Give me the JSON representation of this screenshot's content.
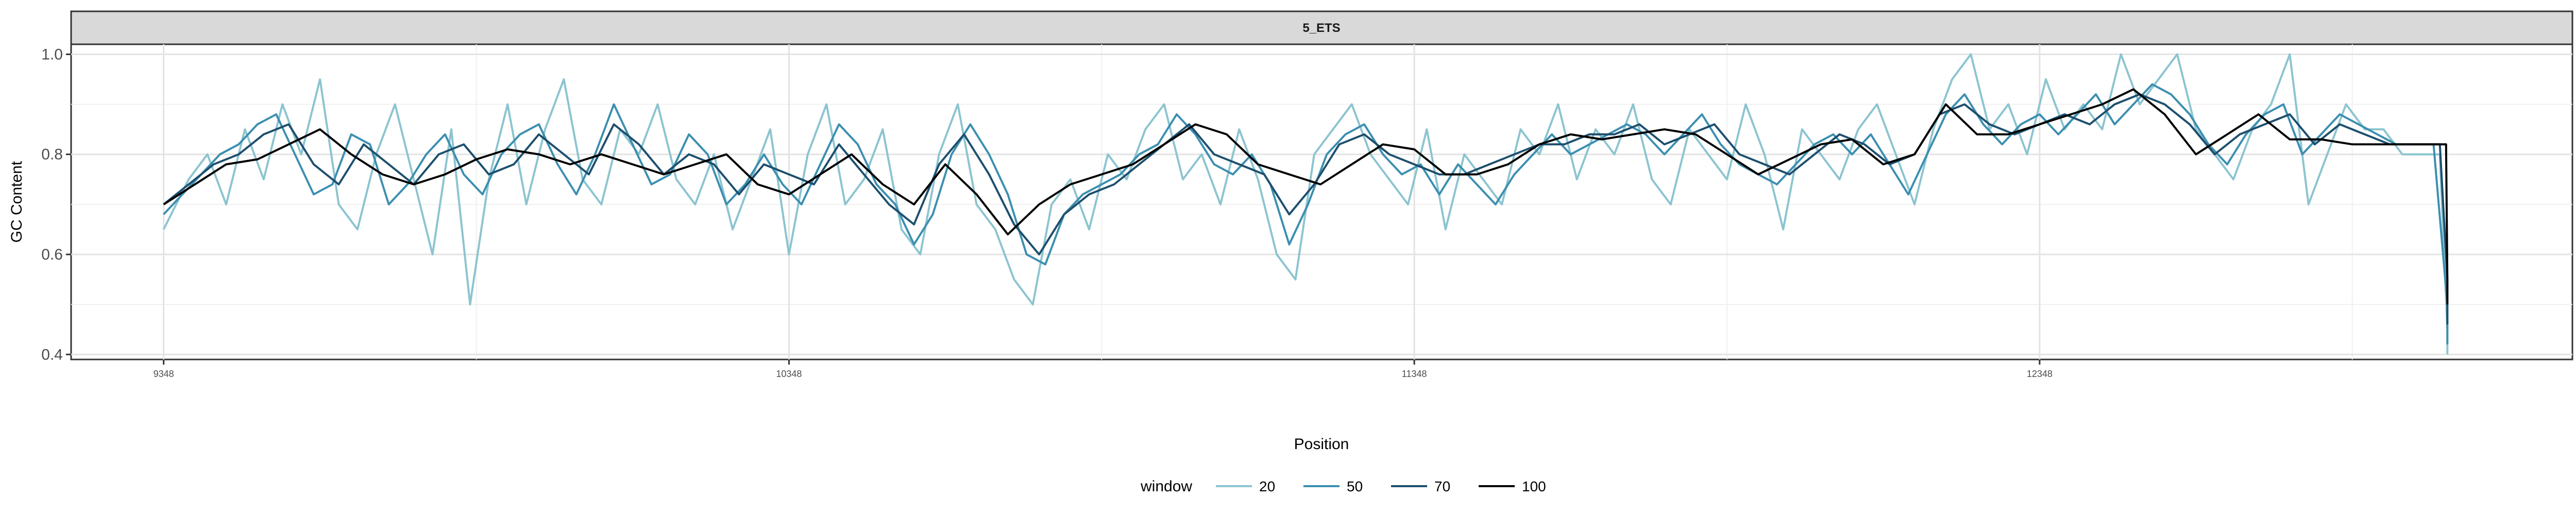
{
  "chart_data": {
    "type": "line",
    "facet_label": "5_ETS",
    "xlabel": "Position",
    "ylabel": "GC Content",
    "xlim": [
      9200,
      13200
    ],
    "ylim": [
      0.39,
      1.02
    ],
    "x_ticks": [
      9348,
      10348,
      11348,
      12348
    ],
    "x_tick_labels": [
      "9348",
      "10348",
      "11348",
      "12348"
    ],
    "y_ticks": [
      0.4,
      0.6,
      0.8,
      1.0
    ],
    "y_tick_labels": [
      "0.4",
      "0.6",
      "0.8",
      "1.0"
    ],
    "grid": true,
    "legend_title": "window",
    "legend_position": "bottom",
    "series": [
      {
        "name": "20",
        "color": "#8cc4d0",
        "width": 4,
        "x": [
          9348,
          9388,
          9418,
          9448,
          9478,
          9508,
          9538,
          9568,
          9598,
          9628,
          9658,
          9688,
          9718,
          9748,
          9778,
          9808,
          9838,
          9868,
          9898,
          9928,
          9958,
          9988,
          10018,
          10048,
          10078,
          10108,
          10138,
          10168,
          10198,
          10228,
          10258,
          10288,
          10318,
          10348,
          10378,
          10408,
          10438,
          10468,
          10498,
          10528,
          10558,
          10588,
          10618,
          10648,
          10678,
          10708,
          10738,
          10768,
          10798,
          10828,
          10858,
          10888,
          10918,
          10948,
          10978,
          11008,
          11038,
          11068,
          11098,
          11128,
          11158,
          11188,
          11218,
          11248,
          11278,
          11308,
          11338,
          11368,
          11398,
          11428,
          11458,
          11488,
          11518,
          11548,
          11578,
          11608,
          11638,
          11668,
          11698,
          11728,
          11758,
          11788,
          11818,
          11848,
          11878,
          11908,
          11938,
          11968,
          11998,
          12028,
          12058,
          12088,
          12118,
          12148,
          12178,
          12208,
          12238,
          12268,
          12298,
          12328,
          12358,
          12388,
          12418,
          12448,
          12478,
          12508,
          12538,
          12568,
          12598,
          12628,
          12658,
          12688,
          12718,
          12748,
          12778,
          12808,
          12838,
          12868,
          12898,
          12928,
          12958,
          12988,
          13000,
          13000
        ],
        "y": [
          0.65,
          0.75,
          0.8,
          0.7,
          0.85,
          0.75,
          0.9,
          0.8,
          0.95,
          0.7,
          0.65,
          0.8,
          0.9,
          0.75,
          0.6,
          0.85,
          0.5,
          0.75,
          0.9,
          0.7,
          0.85,
          0.95,
          0.75,
          0.7,
          0.85,
          0.8,
          0.9,
          0.75,
          0.7,
          0.8,
          0.65,
          0.75,
          0.85,
          0.6,
          0.8,
          0.9,
          0.7,
          0.75,
          0.85,
          0.65,
          0.6,
          0.8,
          0.9,
          0.7,
          0.65,
          0.55,
          0.5,
          0.7,
          0.75,
          0.65,
          0.8,
          0.75,
          0.85,
          0.9,
          0.75,
          0.8,
          0.7,
          0.85,
          0.75,
          0.6,
          0.55,
          0.8,
          0.85,
          0.9,
          0.8,
          0.75,
          0.7,
          0.85,
          0.65,
          0.8,
          0.75,
          0.7,
          0.85,
          0.8,
          0.9,
          0.75,
          0.85,
          0.8,
          0.9,
          0.75,
          0.7,
          0.85,
          0.8,
          0.75,
          0.9,
          0.8,
          0.65,
          0.85,
          0.8,
          0.75,
          0.85,
          0.9,
          0.8,
          0.7,
          0.85,
          0.95,
          1.0,
          0.85,
          0.9,
          0.8,
          0.95,
          0.85,
          0.9,
          0.85,
          1.0,
          0.9,
          0.95,
          1.0,
          0.85,
          0.8,
          0.75,
          0.85,
          0.9,
          1.0,
          0.7,
          0.8,
          0.9,
          0.85,
          0.85,
          0.8,
          0.8,
          0.8,
          0.45,
          0.4
        ]
      },
      {
        "name": "50",
        "color": "#3c8fb0",
        "width": 4,
        "x": [
          9348,
          9378,
          9408,
          9438,
          9468,
          9498,
          9528,
          9558,
          9588,
          9618,
          9648,
          9678,
          9708,
          9738,
          9768,
          9798,
          9828,
          9858,
          9888,
          9918,
          9948,
          9978,
          10008,
          10038,
          10068,
          10098,
          10128,
          10158,
          10188,
          10218,
          10248,
          10278,
          10308,
          10338,
          10368,
          10398,
          10428,
          10458,
          10488,
          10518,
          10548,
          10578,
          10608,
          10638,
          10668,
          10698,
          10728,
          10758,
          10788,
          10818,
          10848,
          10878,
          10908,
          10938,
          10968,
          10998,
          11028,
          11058,
          11088,
          11118,
          11148,
          11178,
          11208,
          11238,
          11268,
          11298,
          11328,
          11358,
          11388,
          11418,
          11448,
          11478,
          11508,
          11538,
          11568,
          11598,
          11628,
          11658,
          11688,
          11718,
          11748,
          11778,
          11808,
          11838,
          11868,
          11898,
          11928,
          11958,
          11988,
          12018,
          12048,
          12078,
          12108,
          12138,
          12168,
          12198,
          12228,
          12258,
          12288,
          12318,
          12348,
          12378,
          12408,
          12438,
          12468,
          12498,
          12528,
          12558,
          12588,
          12618,
          12648,
          12678,
          12708,
          12738,
          12768,
          12798,
          12828,
          12858,
          12888,
          12918,
          12948,
          12978,
          13000,
          13000
        ],
        "y": [
          0.68,
          0.72,
          0.76,
          0.8,
          0.82,
          0.86,
          0.88,
          0.8,
          0.72,
          0.74,
          0.84,
          0.82,
          0.7,
          0.74,
          0.8,
          0.84,
          0.76,
          0.72,
          0.8,
          0.84,
          0.86,
          0.78,
          0.72,
          0.8,
          0.9,
          0.82,
          0.74,
          0.76,
          0.84,
          0.8,
          0.7,
          0.74,
          0.8,
          0.74,
          0.7,
          0.78,
          0.86,
          0.82,
          0.74,
          0.7,
          0.62,
          0.68,
          0.8,
          0.86,
          0.8,
          0.72,
          0.6,
          0.58,
          0.68,
          0.72,
          0.74,
          0.76,
          0.8,
          0.82,
          0.88,
          0.84,
          0.78,
          0.76,
          0.8,
          0.74,
          0.62,
          0.7,
          0.8,
          0.84,
          0.86,
          0.8,
          0.76,
          0.78,
          0.72,
          0.78,
          0.74,
          0.7,
          0.76,
          0.8,
          0.84,
          0.8,
          0.82,
          0.84,
          0.86,
          0.84,
          0.8,
          0.84,
          0.88,
          0.82,
          0.78,
          0.76,
          0.74,
          0.78,
          0.82,
          0.84,
          0.8,
          0.84,
          0.78,
          0.72,
          0.8,
          0.88,
          0.92,
          0.86,
          0.82,
          0.86,
          0.88,
          0.84,
          0.88,
          0.92,
          0.86,
          0.9,
          0.94,
          0.92,
          0.88,
          0.82,
          0.78,
          0.84,
          0.88,
          0.9,
          0.8,
          0.84,
          0.88,
          0.86,
          0.84,
          0.82,
          0.82,
          0.82,
          0.5,
          0.42
        ]
      },
      {
        "name": "70",
        "color": "#1d4f6e",
        "width": 4,
        "x": [
          9348,
          9388,
          9428,
          9468,
          9508,
          9548,
          9588,
          9628,
          9668,
          9708,
          9748,
          9788,
          9828,
          9868,
          9908,
          9948,
          9988,
          10028,
          10068,
          10108,
          10148,
          10188,
          10228,
          10268,
          10308,
          10348,
          10388,
          10428,
          10468,
          10508,
          10548,
          10588,
          10628,
          10668,
          10708,
          10748,
          10788,
          10828,
          10868,
          10908,
          10948,
          10988,
          11028,
          11068,
          11108,
          11148,
          11188,
          11228,
          11268,
          11308,
          11348,
          11388,
          11428,
          11468,
          11508,
          11548,
          11588,
          11628,
          11668,
          11708,
          11748,
          11788,
          11828,
          11868,
          11908,
          11948,
          11988,
          12028,
          12068,
          12108,
          12148,
          12188,
          12228,
          12268,
          12308,
          12348,
          12388,
          12428,
          12468,
          12508,
          12548,
          12588,
          12628,
          12668,
          12708,
          12748,
          12788,
          12828,
          12868,
          12908,
          12948,
          12988,
          13000,
          13000
        ],
        "y": [
          0.7,
          0.74,
          0.78,
          0.8,
          0.84,
          0.86,
          0.78,
          0.74,
          0.82,
          0.78,
          0.74,
          0.8,
          0.82,
          0.76,
          0.78,
          0.84,
          0.8,
          0.76,
          0.86,
          0.82,
          0.76,
          0.8,
          0.78,
          0.72,
          0.78,
          0.76,
          0.74,
          0.82,
          0.76,
          0.7,
          0.66,
          0.78,
          0.84,
          0.76,
          0.66,
          0.6,
          0.68,
          0.72,
          0.74,
          0.78,
          0.82,
          0.86,
          0.8,
          0.78,
          0.76,
          0.68,
          0.74,
          0.82,
          0.84,
          0.8,
          0.78,
          0.76,
          0.76,
          0.78,
          0.8,
          0.82,
          0.82,
          0.84,
          0.84,
          0.86,
          0.82,
          0.84,
          0.86,
          0.8,
          0.78,
          0.76,
          0.8,
          0.84,
          0.82,
          0.78,
          0.8,
          0.88,
          0.9,
          0.86,
          0.84,
          0.86,
          0.88,
          0.86,
          0.9,
          0.92,
          0.9,
          0.86,
          0.8,
          0.84,
          0.86,
          0.88,
          0.82,
          0.86,
          0.84,
          0.82,
          0.82,
          0.82,
          0.55,
          0.46
        ]
      },
      {
        "name": "100",
        "color": "#000000",
        "width": 4,
        "x": [
          9348,
          9398,
          9448,
          9498,
          9548,
          9598,
          9648,
          9698,
          9748,
          9798,
          9848,
          9898,
          9948,
          9998,
          10048,
          10098,
          10148,
          10198,
          10248,
          10298,
          10348,
          10398,
          10448,
          10498,
          10548,
          10598,
          10648,
          10698,
          10748,
          10798,
          10848,
          10898,
          10948,
          10998,
          11048,
          11098,
          11148,
          11198,
          11248,
          11298,
          11348,
          11398,
          11448,
          11498,
          11548,
          11598,
          11648,
          11698,
          11748,
          11798,
          11848,
          11898,
          11948,
          11998,
          12048,
          12098,
          12148,
          12198,
          12248,
          12298,
          12348,
          12398,
          12448,
          12498,
          12548,
          12598,
          12648,
          12698,
          12748,
          12798,
          12848,
          12898,
          12948,
          12998,
          13000,
          13000
        ],
        "y": [
          0.7,
          0.74,
          0.78,
          0.79,
          0.82,
          0.85,
          0.8,
          0.76,
          0.74,
          0.76,
          0.79,
          0.81,
          0.8,
          0.78,
          0.8,
          0.78,
          0.76,
          0.78,
          0.8,
          0.74,
          0.72,
          0.76,
          0.8,
          0.74,
          0.7,
          0.78,
          0.72,
          0.64,
          0.7,
          0.74,
          0.76,
          0.78,
          0.82,
          0.86,
          0.84,
          0.78,
          0.76,
          0.74,
          0.78,
          0.82,
          0.81,
          0.76,
          0.76,
          0.78,
          0.82,
          0.84,
          0.83,
          0.84,
          0.85,
          0.84,
          0.8,
          0.76,
          0.79,
          0.82,
          0.83,
          0.78,
          0.8,
          0.9,
          0.84,
          0.84,
          0.86,
          0.88,
          0.9,
          0.93,
          0.88,
          0.8,
          0.84,
          0.88,
          0.83,
          0.83,
          0.82,
          0.82,
          0.82,
          0.82,
          0.55,
          0.5
        ]
      }
    ]
  }
}
